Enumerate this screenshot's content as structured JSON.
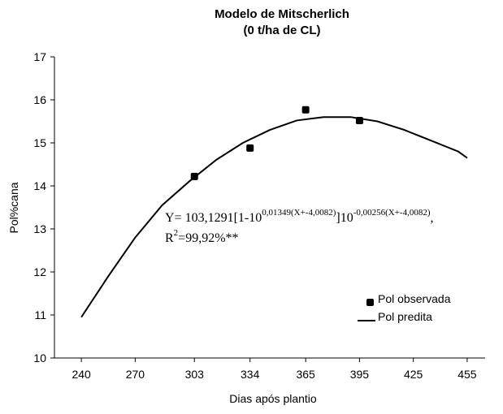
{
  "chart_data": {
    "type": "line",
    "title": [
      "Modelo de Mitscherlich",
      "(0 t/ha de CL)"
    ],
    "x_label": "Dias após plantio",
    "y_label": "Pol%cana",
    "xlim": [
      225,
      465
    ],
    "xticks": [
      240,
      270,
      303,
      334,
      365,
      395,
      425,
      455
    ],
    "ylim": [
      10,
      17
    ],
    "yticks": [
      10,
      11,
      12,
      13,
      14,
      15,
      16,
      17
    ],
    "series": [
      {
        "name": "Pol observada",
        "kind": "scatter",
        "color": "#000000",
        "x": [
          303,
          334,
          365,
          395
        ],
        "values": [
          14.22,
          14.88,
          15.77,
          15.52
        ]
      },
      {
        "name": "Pol predita",
        "kind": "line",
        "color": "#000000",
        "x": [
          240,
          255,
          270,
          285,
          300,
          315,
          330,
          345,
          360,
          375,
          390,
          405,
          420,
          435,
          450,
          455
        ],
        "values": [
          10.95,
          11.9,
          12.8,
          13.55,
          14.1,
          14.6,
          15.0,
          15.3,
          15.52,
          15.6,
          15.6,
          15.5,
          15.3,
          15.05,
          14.8,
          14.65
        ]
      }
    ],
    "equation": [
      "Y= 103,1291[1-10",
      "0,01349(X+-4,0082)",
      "]10",
      "-0,00256(X+-4,0082)",
      ","
    ],
    "r2": [
      "R",
      "2",
      "=99,92%**"
    ]
  }
}
